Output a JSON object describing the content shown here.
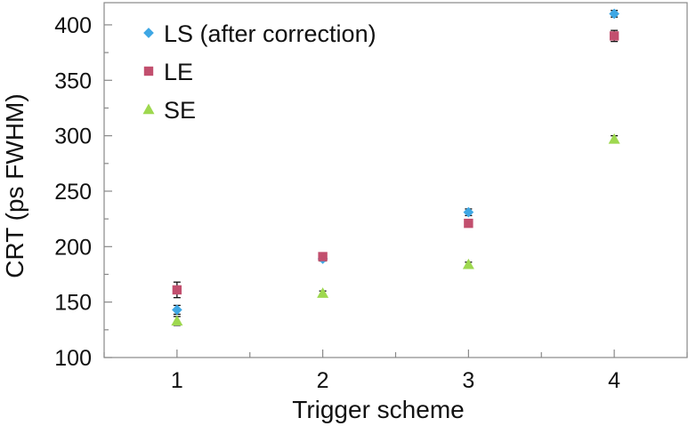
{
  "chart_data": {
    "type": "scatter",
    "xlabel": "Trigger scheme",
    "ylabel": "CRT (ps FWHM)",
    "xlim": [
      0.5,
      4.5
    ],
    "ylim": [
      100,
      420
    ],
    "x_ticks": [
      1,
      2,
      3,
      4
    ],
    "y_ticks": [
      100,
      150,
      200,
      250,
      300,
      350,
      400
    ],
    "grid": false,
    "legend_position": "top-left",
    "series": [
      {
        "name": "LS (after correction)",
        "marker": "diamond",
        "color": "#3fa7e4",
        "points": [
          {
            "x": 1,
            "y": 143,
            "err": 4
          },
          {
            "x": 2,
            "y": 189,
            "err": 2
          },
          {
            "x": 3,
            "y": 231,
            "err": 3
          },
          {
            "x": 4,
            "y": 410,
            "err": 3
          }
        ]
      },
      {
        "name": "LE",
        "marker": "square",
        "color": "#c24f6e",
        "points": [
          {
            "x": 1,
            "y": 161,
            "err": 7
          },
          {
            "x": 2,
            "y": 191,
            "err": 2
          },
          {
            "x": 3,
            "y": 221,
            "err": 3
          },
          {
            "x": 4,
            "y": 390,
            "err": 5
          }
        ]
      },
      {
        "name": "SE",
        "marker": "triangle",
        "color": "#9ed84f",
        "points": [
          {
            "x": 1,
            "y": 133,
            "err": 4
          },
          {
            "x": 2,
            "y": 158,
            "err": 2
          },
          {
            "x": 3,
            "y": 184,
            "err": 2
          },
          {
            "x": 4,
            "y": 297,
            "err": 3
          }
        ]
      }
    ]
  }
}
